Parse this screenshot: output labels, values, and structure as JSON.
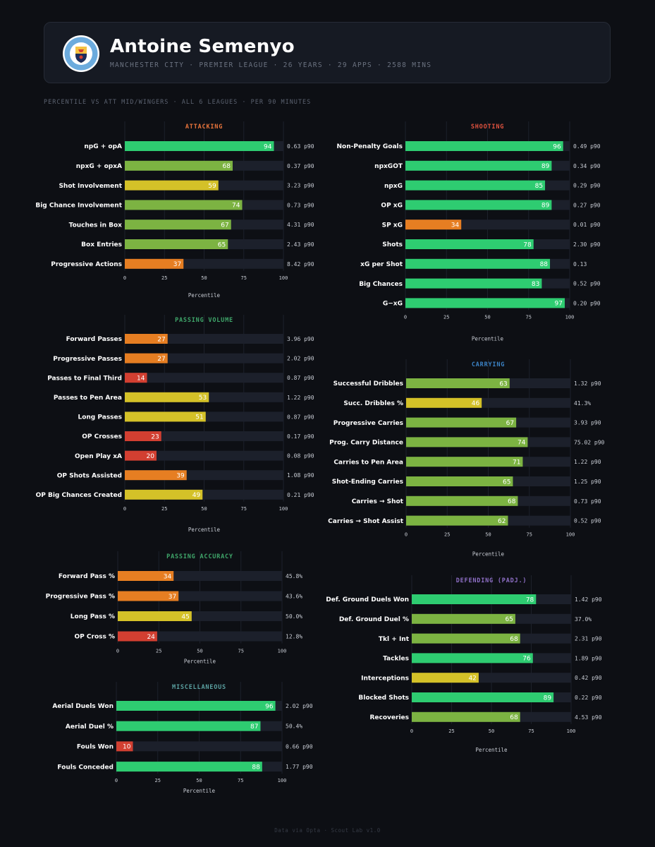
{
  "header": {
    "name": "Antoine Semenyo",
    "meta": "MANCHESTER CITY  ·  PREMIER LEAGUE  ·  26 YEARS · 29 APPS  ·  2588 MINS",
    "crest_text_top": "MANCHESTER",
    "crest_text_bottom": "CITY"
  },
  "subtitle": "PERCENTILE VS ATT MID/WINGERS · ALL 6 LEAGUES · PER 90 MINUTES",
  "footer": "Data via Opta · Scout Lab v1.0",
  "colors": {
    "elite": "#2ecc71",
    "good": "#7cb342",
    "average": "#d4c128",
    "below": "#e67e22",
    "poor": "#d23f31",
    "track": "#1c202b"
  },
  "chart_data": [
    {
      "id": "attacking",
      "type": "bar",
      "orientation": "horizontal",
      "title": "ATTACKING",
      "title_color": "#e8743b",
      "xlabel": "Percentile",
      "xlim": [
        0,
        100
      ],
      "ticks": [
        "0",
        "25",
        "50",
        "75",
        "100"
      ],
      "categories": [
        "npG + opA",
        "npxG + opxA",
        "Shot Involvement",
        "Big Chance Involvement",
        "Touches in Box",
        "Box Entries",
        "Progressive Actions"
      ],
      "values": [
        94,
        68,
        59,
        74,
        67,
        65,
        37
      ],
      "raw": [
        "0.63 p90",
        "0.37 p90",
        "3.23 p90",
        "0.73 p90",
        "4.31 p90",
        "2.43 p90",
        "8.42 p90"
      ]
    },
    {
      "id": "passing-volume",
      "type": "bar",
      "orientation": "horizontal",
      "title": "PASSING VOLUME",
      "title_color": "#3fa66a",
      "xlabel": "Percentile",
      "xlim": [
        0,
        100
      ],
      "ticks": [
        "0",
        "25",
        "50",
        "75",
        "100"
      ],
      "categories": [
        "Forward Passes",
        "Progressive Passes",
        "Passes to Final Third",
        "Passes to Pen Area",
        "Long Passes",
        "OP Crosses",
        "Open Play xA",
        "OP Shots Assisted",
        "OP Big Chances Created"
      ],
      "values": [
        27,
        27,
        14,
        53,
        51,
        23,
        20,
        39,
        49
      ],
      "raw": [
        "3.96 p90",
        "2.02 p90",
        "0.87 p90",
        "1.22 p90",
        "0.87 p90",
        "0.17 p90",
        "0.08 p90",
        "1.08 p90",
        "0.21 p90"
      ]
    },
    {
      "id": "passing-accuracy",
      "type": "bar",
      "orientation": "horizontal",
      "title": "PASSING ACCURACY",
      "title_color": "#3fa66a",
      "xlabel": "Percentile",
      "xlim": [
        0,
        100
      ],
      "ticks": [
        "0",
        "25",
        "50",
        "75",
        "100"
      ],
      "categories": [
        "Forward Pass %",
        "Progressive Pass %",
        "Long Pass %",
        "OP Cross %"
      ],
      "values": [
        34,
        37,
        45,
        24
      ],
      "raw": [
        "45.8%",
        "43.6%",
        "50.0%",
        "12.8%"
      ]
    },
    {
      "id": "miscellaneous",
      "type": "bar",
      "orientation": "horizontal",
      "title": "MISCELLANEOUS",
      "title_color": "#5aa0a0",
      "xlabel": "Percentile",
      "xlim": [
        0,
        100
      ],
      "ticks": [
        "0",
        "25",
        "50",
        "75",
        "100"
      ],
      "categories": [
        "Aerial Duels Won",
        "Aerial Duel %",
        "Fouls Won",
        "Fouls Conceded"
      ],
      "values": [
        96,
        87,
        10,
        88
      ],
      "raw": [
        "2.02 p90",
        "50.4%",
        "0.66 p90",
        "1.77 p90"
      ]
    },
    {
      "id": "shooting",
      "type": "bar",
      "orientation": "horizontal",
      "title": "SHOOTING",
      "title_color": "#e0523f",
      "xlabel": "Percentile",
      "xlim": [
        0,
        100
      ],
      "ticks": [
        "0",
        "25",
        "50",
        "75",
        "100"
      ],
      "categories": [
        "Non-Penalty Goals",
        "npxGOT",
        "npxG",
        "OP xG",
        "SP xG",
        "Shots",
        "xG per Shot",
        "Big Chances",
        "G−xG"
      ],
      "values": [
        96,
        89,
        85,
        89,
        34,
        78,
        88,
        83,
        97
      ],
      "raw": [
        "0.49 p90",
        "0.34 p90",
        "0.29 p90",
        "0.27 p90",
        "0.01 p90",
        "2.30 p90",
        "0.13",
        "0.52 p90",
        "0.20 p90"
      ]
    },
    {
      "id": "carrying",
      "type": "bar",
      "orientation": "horizontal",
      "title": "CARRYING",
      "title_color": "#3b82c4",
      "xlabel": "Percentile",
      "xlim": [
        0,
        100
      ],
      "ticks": [
        "0",
        "25",
        "50",
        "75",
        "100"
      ],
      "categories": [
        "Successful Dribbles",
        "Succ. Dribbles %",
        "Progressive Carries",
        "Prog. Carry Distance",
        "Carries to Pen Area",
        "Shot-Ending Carries",
        "Carries → Shot",
        "Carries → Shot Assist"
      ],
      "values": [
        63,
        46,
        67,
        74,
        71,
        65,
        68,
        62
      ],
      "raw": [
        "1.32 p90",
        "41.3%",
        "3.93 p90",
        "75.02 p90",
        "1.22 p90",
        "1.25 p90",
        "0.73 p90",
        "0.52 p90"
      ]
    },
    {
      "id": "defending",
      "type": "bar",
      "orientation": "horizontal",
      "title": "DEFENDING (PADJ.)",
      "title_color": "#8e6fc6",
      "xlabel": "Percentile",
      "xlim": [
        0,
        100
      ],
      "ticks": [
        "0",
        "25",
        "50",
        "75",
        "100"
      ],
      "categories": [
        "Def. Ground Duels Won",
        "Def. Ground Duel %",
        "Tkl + Int",
        "Tackles",
        "Interceptions",
        "Blocked Shots",
        "Recoveries"
      ],
      "values": [
        78,
        65,
        68,
        76,
        42,
        89,
        68
      ],
      "raw": [
        "1.42 p90",
        "37.0%",
        "2.31 p90",
        "1.89 p90",
        "0.42 p90",
        "0.22 p90",
        "4.53 p90"
      ]
    }
  ]
}
